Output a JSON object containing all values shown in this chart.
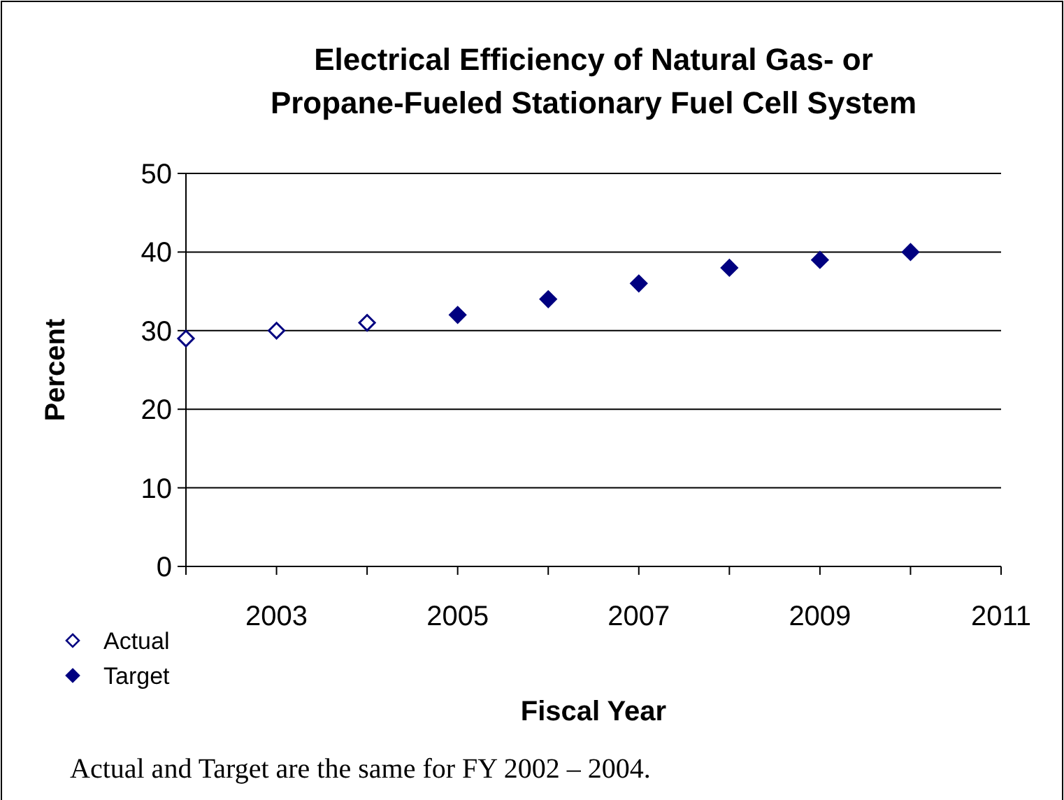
{
  "chart_data": {
    "type": "scatter",
    "title": "Electrical Efficiency of Natural Gas- or\nPropane-Fueled Stationary Fuel Cell System",
    "xlabel": "Fiscal Year",
    "ylabel": "Percent",
    "series": [
      {
        "name": "Actual",
        "color": "#000080",
        "x": [
          2002,
          2003,
          2004
        ],
        "values": [
          29,
          30,
          31
        ]
      },
      {
        "name": "Target",
        "color": "#000080",
        "x": [
          2005,
          2006,
          2007,
          2008,
          2009,
          2010
        ],
        "values": [
          32,
          34,
          36,
          38,
          39,
          40
        ]
      }
    ],
    "xlim": [
      2002,
      2011
    ],
    "xticks": [
      {
        "value": 2002,
        "label": null
      },
      2003,
      {
        "value": 2004,
        "label": null
      },
      2005,
      {
        "value": 2006,
        "label": null
      },
      2007,
      {
        "value": 2008,
        "label": null
      },
      2009,
      {
        "value": 2010,
        "label": null
      },
      2011
    ],
    "ylim": [
      0,
      50
    ],
    "yticks": [
      0,
      10,
      20,
      30,
      40,
      50
    ],
    "grid": "y",
    "marker": "diamond",
    "legend": "bottom left",
    "annotations": [
      "Actual and Target are the same for FY 2002 – 2004."
    ]
  }
}
